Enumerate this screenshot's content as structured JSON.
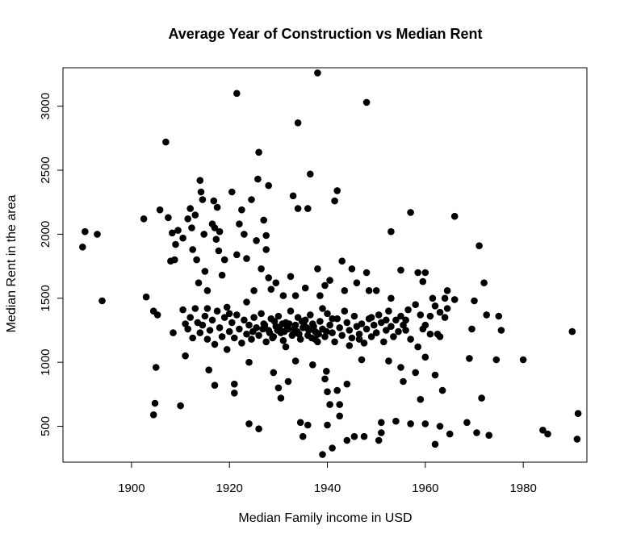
{
  "chart_data": {
    "type": "scatter",
    "title": "Average Year of Construction vs Median Rent",
    "xlabel": "Median Family income in USD",
    "ylabel": "Median Rent in the area",
    "xlim": [
      1886,
      1993
    ],
    "ylim": [
      220,
      3300
    ],
    "x_ticks": [
      1900,
      1920,
      1940,
      1960,
      1980
    ],
    "y_ticks": [
      500,
      1000,
      1500,
      2000,
      2500,
      3000
    ],
    "grid": false,
    "legend": "none",
    "point_color": "#000000",
    "points": [
      [
        1890,
        1900
      ],
      [
        1890.5,
        2020
      ],
      [
        1893,
        2000
      ],
      [
        1894,
        1480
      ],
      [
        1902.5,
        2120
      ],
      [
        1903,
        1510
      ],
      [
        1904.5,
        1400
      ],
      [
        1904.5,
        590
      ],
      [
        1904.8,
        680
      ],
      [
        1905,
        960
      ],
      [
        1905.3,
        1370
      ],
      [
        1905.8,
        2190
      ],
      [
        1907,
        2720
      ],
      [
        1907.5,
        2130
      ],
      [
        1908,
        1790
      ],
      [
        1908.3,
        2010
      ],
      [
        1908.5,
        1230
      ],
      [
        1908.8,
        1800
      ],
      [
        1909,
        1920
      ],
      [
        1909.5,
        2030
      ],
      [
        1910,
        660
      ],
      [
        1910.5,
        1970
      ],
      [
        1910.5,
        1410
      ],
      [
        1911,
        1050
      ],
      [
        1911.5,
        2120
      ],
      [
        1912,
        2200
      ],
      [
        1912.3,
        2050
      ],
      [
        1912.5,
        1880
      ],
      [
        1913,
        2150
      ],
      [
        1913.3,
        1800
      ],
      [
        1913.7,
        1620
      ],
      [
        1914,
        2420
      ],
      [
        1914.2,
        2330
      ],
      [
        1914.5,
        2270
      ],
      [
        1914.8,
        2000
      ],
      [
        1915,
        1710
      ],
      [
        1915.5,
        1560
      ],
      [
        1915.5,
        1420
      ],
      [
        1915.8,
        940
      ],
      [
        1916.5,
        2080
      ],
      [
        1916.8,
        2260
      ],
      [
        1917,
        2050
      ],
      [
        1917.3,
        1960
      ],
      [
        1917.5,
        2210
      ],
      [
        1917.8,
        1870
      ],
      [
        1918,
        2020
      ],
      [
        1918.5,
        1680
      ],
      [
        1917,
        820
      ],
      [
        1919,
        1800
      ],
      [
        1919.5,
        1430
      ],
      [
        1920,
        1380
      ],
      [
        1920.5,
        2330
      ],
      [
        1921,
        830
      ],
      [
        1921,
        760
      ],
      [
        1921.5,
        3100
      ],
      [
        1921.5,
        1840
      ],
      [
        1922,
        2080
      ],
      [
        1922.5,
        2190
      ],
      [
        1923,
        2000
      ],
      [
        1923.5,
        1810
      ],
      [
        1923.5,
        1470
      ],
      [
        1924,
        520
      ],
      [
        1924,
        1000
      ],
      [
        1924.5,
        2270
      ],
      [
        1925,
        1560
      ],
      [
        1925.5,
        1950
      ],
      [
        1925.8,
        2430
      ],
      [
        1926,
        2640
      ],
      [
        1926,
        480
      ],
      [
        1926.5,
        1730
      ],
      [
        1927,
        2110
      ],
      [
        1927.5,
        1990
      ],
      [
        1927.5,
        1880
      ],
      [
        1928,
        2380
      ],
      [
        1928,
        1660
      ],
      [
        1928.5,
        1570
      ],
      [
        1929,
        920
      ],
      [
        1929.5,
        1620
      ],
      [
        1930,
        800
      ],
      [
        1930.5,
        720
      ],
      [
        1931,
        1520
      ],
      [
        1931.5,
        1120
      ],
      [
        1932,
        850
      ],
      [
        1932.5,
        1670
      ],
      [
        1933,
        2300
      ],
      [
        1933.5,
        1520
      ],
      [
        1933.5,
        1010
      ],
      [
        1934,
        2870
      ],
      [
        1934,
        2200
      ],
      [
        1934.5,
        530
      ],
      [
        1935,
        420
      ],
      [
        1935.5,
        1580
      ],
      [
        1936,
        510
      ],
      [
        1936,
        2200
      ],
      [
        1936.5,
        2470
      ],
      [
        1937,
        980
      ],
      [
        1937.5,
        1180
      ],
      [
        1938,
        3260
      ],
      [
        1938,
        1730
      ],
      [
        1938.5,
        1520
      ],
      [
        1939,
        1420
      ],
      [
        1939,
        280
      ],
      [
        1939.5,
        1600
      ],
      [
        1939.5,
        870
      ],
      [
        1939.8,
        930
      ],
      [
        1940,
        510
      ],
      [
        1940,
        770
      ],
      [
        1940.5,
        1640
      ],
      [
        1940.5,
        670
      ],
      [
        1941,
        330
      ],
      [
        1941,
        1340
      ],
      [
        1941.5,
        2260
      ],
      [
        1942,
        2340
      ],
      [
        1942,
        780
      ],
      [
        1942.5,
        580
      ],
      [
        1942.5,
        670
      ],
      [
        1943,
        1790
      ],
      [
        1943.5,
        1560
      ],
      [
        1944,
        830
      ],
      [
        1944,
        390
      ],
      [
        1944.5,
        1130
      ],
      [
        1945,
        1730
      ],
      [
        1945.5,
        420
      ],
      [
        1946,
        1620
      ],
      [
        1946.5,
        1180
      ],
      [
        1947,
        1020
      ],
      [
        1947.5,
        420
      ],
      [
        1948,
        3030
      ],
      [
        1948,
        1700
      ],
      [
        1948.5,
        1560
      ],
      [
        1949,
        1350
      ],
      [
        1950,
        1560
      ],
      [
        1950.5,
        390
      ],
      [
        1951,
        450
      ],
      [
        1951,
        530
      ],
      [
        1952,
        1330
      ],
      [
        1952.5,
        1010
      ],
      [
        1953,
        2020
      ],
      [
        1953,
        1500
      ],
      [
        1954,
        540
      ],
      [
        1955,
        1720
      ],
      [
        1955,
        960
      ],
      [
        1955.5,
        850
      ],
      [
        1956,
        1250
      ],
      [
        1957,
        520
      ],
      [
        1957,
        2170
      ],
      [
        1958,
        920
      ],
      [
        1958.5,
        1700
      ],
      [
        1959,
        710
      ],
      [
        1959.5,
        1630
      ],
      [
        1960,
        1700
      ],
      [
        1960,
        520
      ],
      [
        1960,
        1040
      ],
      [
        1961,
        1360
      ],
      [
        1962,
        900
      ],
      [
        1962,
        360
      ],
      [
        1962.5,
        1220
      ],
      [
        1963,
        500
      ],
      [
        1963,
        1390
      ],
      [
        1963.5,
        780
      ],
      [
        1964,
        1500
      ],
      [
        1964.5,
        1560
      ],
      [
        1965,
        440
      ],
      [
        1966,
        2140
      ],
      [
        1966,
        1490
      ],
      [
        1968.5,
        530
      ],
      [
        1969,
        1030
      ],
      [
        1969.5,
        1260
      ],
      [
        1970,
        1480
      ],
      [
        1970.5,
        450
      ],
      [
        1971,
        1910
      ],
      [
        1971.5,
        720
      ],
      [
        1972,
        1620
      ],
      [
        1972.5,
        1370
      ],
      [
        1973,
        430
      ],
      [
        1974.5,
        1020
      ],
      [
        1975,
        1360
      ],
      [
        1975.5,
        1250
      ],
      [
        1980,
        1020
      ],
      [
        1984,
        470
      ],
      [
        1985,
        440
      ],
      [
        1990,
        1240
      ],
      [
        1991,
        400
      ],
      [
        1991.2,
        600
      ],
      [
        1911,
        1300
      ],
      [
        1911.5,
        1260
      ],
      [
        1912,
        1350
      ],
      [
        1912.5,
        1190
      ],
      [
        1913,
        1420
      ],
      [
        1913.5,
        1310
      ],
      [
        1914,
        1230
      ],
      [
        1914.5,
        1290
      ],
      [
        1915,
        1360
      ],
      [
        1915.5,
        1180
      ],
      [
        1916,
        1250
      ],
      [
        1916.5,
        1330
      ],
      [
        1917,
        1140
      ],
      [
        1917.5,
        1400
      ],
      [
        1918,
        1270
      ],
      [
        1918.5,
        1200
      ],
      [
        1919,
        1350
      ],
      [
        1919.5,
        1100
      ],
      [
        1920,
        1240
      ],
      [
        1920.5,
        1310
      ],
      [
        1921,
        1190
      ],
      [
        1921.5,
        1370
      ],
      [
        1922,
        1260
      ],
      [
        1922.5,
        1150
      ],
      [
        1923,
        1330
      ],
      [
        1923.5,
        1220
      ],
      [
        1924,
        1290
      ],
      [
        1924.5,
        1180
      ],
      [
        1925,
        1350
      ],
      [
        1925.5,
        1270
      ],
      [
        1926,
        1210
      ],
      [
        1926.5,
        1380
      ],
      [
        1927,
        1300
      ],
      [
        1927.5,
        1160
      ],
      [
        1928,
        1250
      ],
      [
        1928.5,
        1340
      ],
      [
        1929,
        1200
      ],
      [
        1929.5,
        1280
      ],
      [
        1930,
        1360
      ],
      [
        1930.5,
        1230
      ],
      [
        1931,
        1170
      ],
      [
        1931.5,
        1310
      ],
      [
        1932,
        1260
      ],
      [
        1932.5,
        1400
      ],
      [
        1933,
        1220
      ],
      [
        1933.5,
        1290
      ],
      [
        1934,
        1350
      ],
      [
        1934.5,
        1180
      ],
      [
        1935,
        1270
      ],
      [
        1935.5,
        1330
      ],
      [
        1936,
        1210
      ],
      [
        1936.5,
        1370
      ],
      [
        1937,
        1300
      ],
      [
        1937.5,
        1240
      ],
      [
        1938,
        1160
      ],
      [
        1938.5,
        1320
      ],
      [
        1939,
        1260
      ],
      [
        1939.5,
        1200
      ],
      [
        1940,
        1380
      ],
      [
        1940.5,
        1290
      ],
      [
        1941,
        1230
      ],
      [
        1941.5,
        1160
      ],
      [
        1942,
        1340
      ],
      [
        1942.5,
        1270
      ],
      [
        1943,
        1210
      ],
      [
        1943.5,
        1400
      ],
      [
        1944,
        1310
      ],
      [
        1944.5,
        1250
      ],
      [
        1945,
        1190
      ],
      [
        1945.5,
        1360
      ],
      [
        1946,
        1280
      ],
      [
        1946.5,
        1220
      ],
      [
        1947,
        1300
      ],
      [
        1947.5,
        1150
      ],
      [
        1948,
        1260
      ],
      [
        1948.5,
        1340
      ],
      [
        1949,
        1200
      ],
      [
        1949.5,
        1290
      ],
      [
        1950,
        1230
      ],
      [
        1950.5,
        1370
      ],
      [
        1951,
        1310
      ],
      [
        1951.5,
        1160
      ],
      [
        1952,
        1250
      ],
      [
        1952.5,
        1400
      ],
      [
        1953,
        1280
      ],
      [
        1953.5,
        1200
      ],
      [
        1954,
        1330
      ],
      [
        1954.5,
        1240
      ],
      [
        1955,
        1360
      ],
      [
        1955.5,
        1290
      ],
      [
        1927.2,
        1290
      ],
      [
        1928.2,
        1230
      ],
      [
        1929.2,
        1320
      ],
      [
        1930.2,
        1270
      ],
      [
        1931.2,
        1240
      ],
      [
        1932.2,
        1300
      ],
      [
        1933.2,
        1260
      ],
      [
        1934.2,
        1220
      ],
      [
        1935.2,
        1310
      ],
      [
        1936.2,
        1250
      ],
      [
        1937.2,
        1280
      ],
      [
        1938.2,
        1220
      ],
      [
        1929.8,
        1250
      ],
      [
        1931.8,
        1280
      ],
      [
        1933.8,
        1240
      ],
      [
        1935.8,
        1270
      ],
      [
        1937.8,
        1230
      ],
      [
        1930.8,
        1300
      ],
      [
        1932.8,
        1210
      ],
      [
        1934.8,
        1320
      ],
      [
        1926.8,
        1260
      ],
      [
        1928.8,
        1190
      ],
      [
        1936.8,
        1190
      ],
      [
        1939.8,
        1240
      ],
      [
        1924.8,
        1240
      ],
      [
        1958,
        1450
      ],
      [
        1959,
        1370
      ],
      [
        1960,
        1290
      ],
      [
        1961,
        1220
      ],
      [
        1962,
        1440
      ],
      [
        1957,
        1180
      ],
      [
        1956,
        1330
      ],
      [
        1964,
        1350
      ],
      [
        1963,
        1200
      ],
      [
        1958.5,
        1120
      ],
      [
        1961.5,
        1500
      ],
      [
        1964.5,
        1420
      ],
      [
        1956.5,
        1410
      ],
      [
        1959.5,
        1260
      ]
    ]
  }
}
